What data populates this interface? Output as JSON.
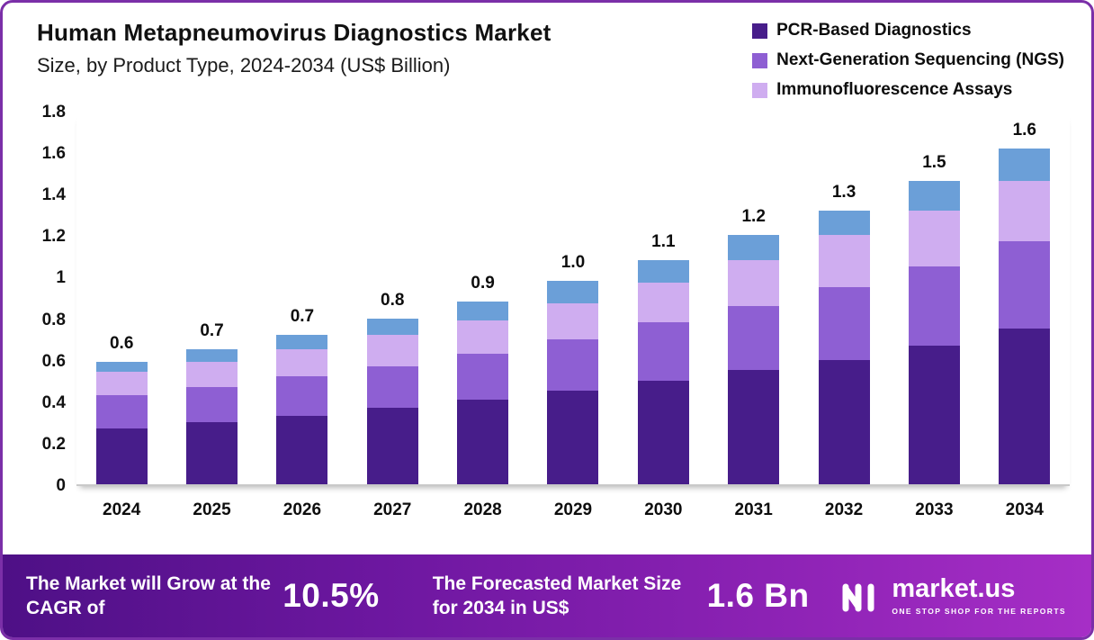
{
  "header": {
    "title": "Human Metapneumovirus Diagnostics Market",
    "subtitle": "Size, by Product Type, 2024-2034 (US$ Billion)"
  },
  "legend": [
    {
      "label": "PCR-Based Diagnostics",
      "color": "#471d8a"
    },
    {
      "label": "Next-Generation Sequencing (NGS)",
      "color": "#8e5fd3"
    },
    {
      "label": "Immunofluorescence Assays",
      "color": "#cfadf0"
    }
  ],
  "chart_data": {
    "type": "bar",
    "stacked": true,
    "title": "Human Metapneumovirus Diagnostics Market Size, by Product Type, 2024-2034 (US$ Billion)",
    "categories": [
      "2024",
      "2025",
      "2026",
      "2027",
      "2028",
      "2029",
      "2030",
      "2031",
      "2032",
      "2033",
      "2034"
    ],
    "totals": [
      "0.6",
      "0.7",
      "0.7",
      "0.8",
      "0.9",
      "1.0",
      "1.1",
      "1.2",
      "1.3",
      "1.5",
      "1.6"
    ],
    "series": [
      {
        "name": "PCR-Based Diagnostics",
        "color": "#471d8a",
        "values": [
          0.27,
          0.3,
          0.33,
          0.37,
          0.41,
          0.45,
          0.5,
          0.55,
          0.6,
          0.67,
          0.75
        ]
      },
      {
        "name": "Next-Generation Sequencing (NGS)",
        "color": "#8e5fd3",
        "values": [
          0.16,
          0.17,
          0.19,
          0.2,
          0.22,
          0.25,
          0.28,
          0.31,
          0.35,
          0.38,
          0.42
        ]
      },
      {
        "name": "Immunofluorescence Assays",
        "color": "#cfadf0",
        "values": [
          0.11,
          0.12,
          0.13,
          0.15,
          0.16,
          0.17,
          0.19,
          0.22,
          0.25,
          0.27,
          0.29
        ]
      },
      {
        "name": "unlabeled-top-segment",
        "color": "#6b9fd8",
        "values": [
          0.05,
          0.06,
          0.07,
          0.08,
          0.09,
          0.11,
          0.11,
          0.12,
          0.12,
          0.14,
          0.16
        ]
      }
    ],
    "y_ticks": [
      "1.8",
      "1.6",
      "1.4",
      "1.2",
      "1",
      "0.8",
      "0.6",
      "0.4",
      "0.2",
      "0"
    ],
    "ylim": [
      0,
      1.8
    ],
    "grid": false,
    "legend_position": "top-right"
  },
  "banner": {
    "cagr_label": "The Market will Grow at the CAGR of",
    "cagr_value": "10.5%",
    "forecast_label": "The Forecasted Market Size for 2034 in US$",
    "forecast_value": "1.6 Bn",
    "brand": "market.us",
    "tagline": "ONE STOP SHOP FOR THE REPORTS"
  }
}
